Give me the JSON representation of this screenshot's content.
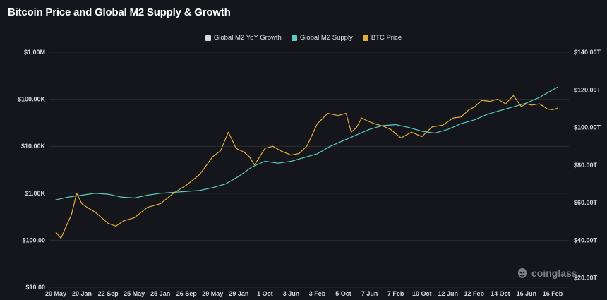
{
  "title": "Bitcoin Price and Global M2 Supply & Growth",
  "watermark": "coinglass",
  "chart_data": {
    "type": "line",
    "title": "Bitcoin Price and Global M2 Supply & Growth",
    "legend_position": "top-center",
    "grid": true,
    "x_ticks": [
      "20 May",
      "20 Jan",
      "22 Sep",
      "25 May",
      "25 Jan",
      "26 Sep",
      "29 May",
      "29 Jan",
      "1 Oct",
      "3 Jun",
      "3 Feb",
      "5 Oct",
      "7 Jun",
      "7 Feb",
      "10 Oct",
      "12 Jun",
      "12 Feb",
      "14 Oct",
      "16 Jun",
      "16 Feb"
    ],
    "y_left": {
      "scale": "log",
      "ticks": [
        10,
        100,
        1000,
        10000,
        100000,
        1000000
      ],
      "tick_labels": [
        "$10.00",
        "$100.00",
        "$1.00K",
        "$10.00K",
        "$100.00K",
        "$1.00M"
      ],
      "range": [
        10,
        1000000
      ]
    },
    "y_right": {
      "scale": "linear",
      "ticks": [
        20,
        40,
        60,
        80,
        100,
        120,
        140
      ],
      "tick_labels": [
        "$20.00T",
        "$40.00T",
        "$60.00T",
        "$80.00T",
        "$100.00T",
        "$120.00T",
        "$140.00T"
      ],
      "range": [
        15,
        140
      ]
    },
    "series": [
      {
        "name": "Global M2 YoY Growth",
        "color": "#d9d9d9",
        "axis": "none",
        "x": [],
        "values": []
      },
      {
        "name": "Global M2 Supply",
        "color": "#5ec9c2",
        "axis": "right",
        "x": [
          0.0,
          0.5,
          1.0,
          1.5,
          2.0,
          2.5,
          3.0,
          3.5,
          4.0,
          4.5,
          5.0,
          5.5,
          6.0,
          6.5,
          7.0,
          7.5,
          8.0,
          8.5,
          9.0,
          9.5,
          10.0,
          10.5,
          11.0,
          11.5,
          12.0,
          12.5,
          13.0,
          13.5,
          14.0,
          14.5,
          15.0,
          15.5,
          16.0,
          16.5,
          17.0,
          17.5,
          18.0,
          18.5,
          19.0,
          19.2
        ],
        "values": [
          61.5,
          63.0,
          64.0,
          65.0,
          64.5,
          63.0,
          62.5,
          64.0,
          65.0,
          65.5,
          66.0,
          66.5,
          68.0,
          70.0,
          74.0,
          79.0,
          82.0,
          81.0,
          82.0,
          84.0,
          86.0,
          90.0,
          93.0,
          96.0,
          99.0,
          101.0,
          101.5,
          100.0,
          98.0,
          97.0,
          99.0,
          102.0,
          104.0,
          107.0,
          109.0,
          111.0,
          113.0,
          116.0,
          120.0,
          121.5
        ]
      },
      {
        "name": "BTC Price",
        "color": "#e0ad3d",
        "axis": "left",
        "x": [
          0.0,
          0.2,
          0.4,
          0.6,
          0.8,
          1.0,
          1.2,
          1.5,
          2.0,
          2.3,
          2.6,
          3.0,
          3.5,
          4.0,
          4.5,
          5.0,
          5.5,
          6.0,
          6.3,
          6.6,
          6.9,
          7.2,
          7.4,
          7.6,
          7.8,
          8.0,
          8.3,
          8.6,
          9.0,
          9.3,
          9.6,
          10.0,
          10.4,
          10.8,
          11.1,
          11.3,
          11.5,
          11.7,
          11.9,
          12.2,
          12.5,
          12.8,
          13.2,
          13.6,
          14.0,
          14.4,
          14.8,
          15.2,
          15.5,
          15.8,
          16.0,
          16.3,
          16.6,
          16.9,
          17.2,
          17.5,
          17.8,
          18.0,
          18.2,
          18.5,
          18.8,
          19.0,
          19.2
        ],
        "values": [
          150,
          110,
          200,
          350,
          1000,
          600,
          500,
          400,
          230,
          200,
          260,
          300,
          500,
          600,
          1000,
          1500,
          2500,
          6000,
          8000,
          20000,
          9000,
          7500,
          6000,
          4000,
          6000,
          9000,
          10000,
          8000,
          6500,
          7000,
          10000,
          30000,
          50000,
          45000,
          50000,
          20000,
          25000,
          40000,
          35000,
          30000,
          27000,
          23000,
          15000,
          20000,
          16000,
          26000,
          28000,
          40000,
          42000,
          60000,
          68000,
          95000,
          90000,
          100000,
          80000,
          120000,
          70000,
          80000,
          75000,
          80000,
          62000,
          60000,
          65000
        ]
      }
    ]
  }
}
